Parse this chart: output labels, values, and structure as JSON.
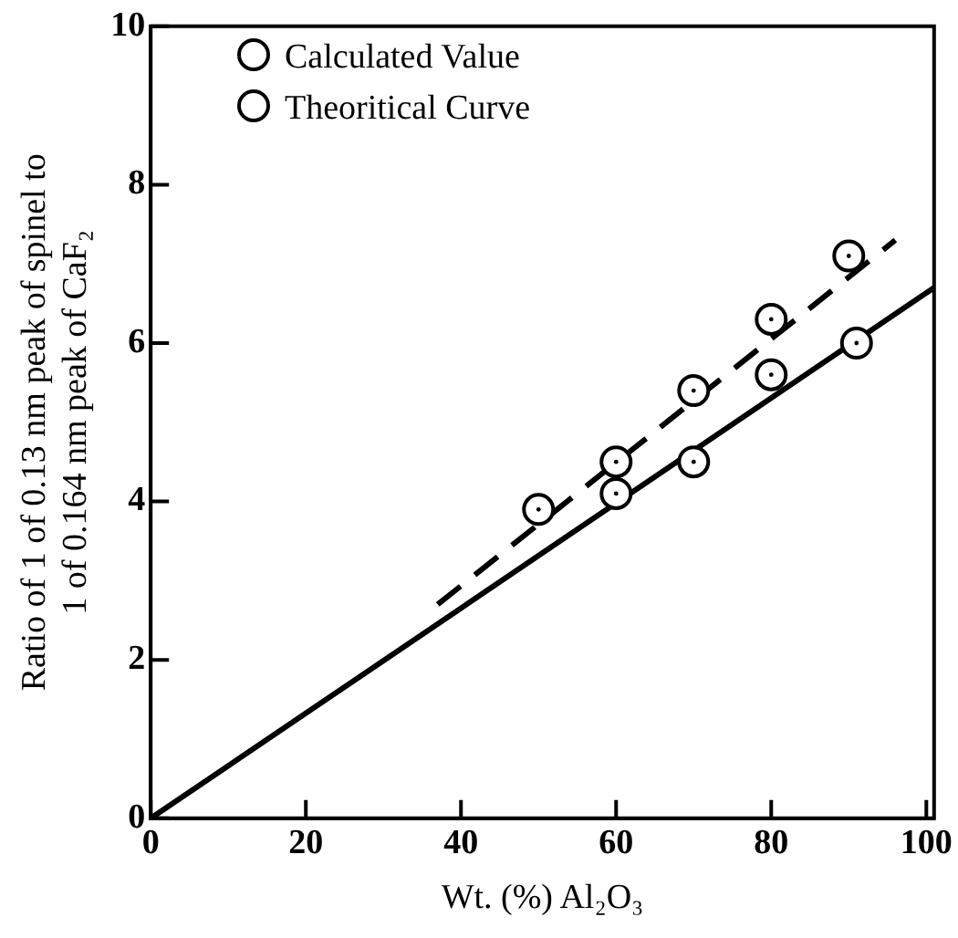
{
  "chart_data": {
    "type": "scatter",
    "xlabel": "Wt. (%) Al₂O₃",
    "ylabel": "Ratio of 1 of 0.13 nm peak of spinel to\n1 of 0.164 nm peak of CaF₂",
    "xlim": [
      0,
      101
    ],
    "ylim": [
      0,
      10
    ],
    "xticks": [
      0,
      20,
      40,
      60,
      80,
      100
    ],
    "yticks": [
      0,
      2,
      4,
      6,
      8,
      10
    ],
    "grid": false,
    "legend": "top left",
    "series": [
      {
        "name": "Calculated Value",
        "color": "#000000",
        "marker": "circle",
        "x": [
          50,
          60,
          70,
          80,
          90
        ],
        "values": [
          3.9,
          4.5,
          5.4,
          6.3,
          7.1
        ]
      },
      {
        "name": "Theoritical Curve",
        "color": "#000000",
        "marker": "circle",
        "x": [
          60,
          70,
          80,
          91
        ],
        "values": [
          4.1,
          4.5,
          5.6,
          6.0
        ]
      },
      {
        "type": "line",
        "color": "#000000",
        "line_style": "dashed",
        "marker": "none",
        "x": [
          37,
          96
        ],
        "values": [
          2.7,
          7.3
        ]
      },
      {
        "type": "line",
        "color": "#000000",
        "line_style": "solid",
        "marker": "none",
        "x": [
          0,
          101
        ],
        "values": [
          0,
          6.7
        ]
      }
    ]
  }
}
